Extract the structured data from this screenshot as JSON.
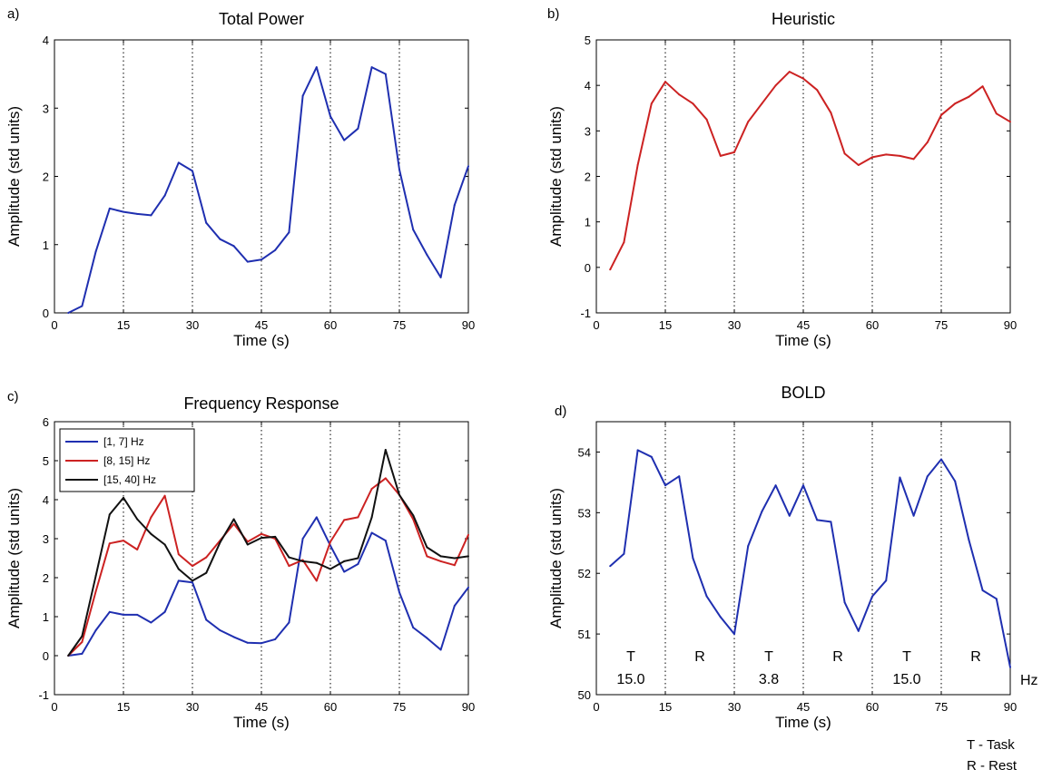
{
  "figure": {
    "note_task": "T - Task",
    "note_rest": "R - Rest"
  },
  "chart_data": [
    {
      "type": "line",
      "panel_label": "a)",
      "title": "Total Power",
      "xlabel": "Time (s)",
      "ylabel": "Amplitude (std units)",
      "xlim": [
        0,
        90
      ],
      "ylim": [
        0,
        4
      ],
      "xticks": [
        0,
        15,
        30,
        45,
        60,
        75,
        90
      ],
      "yticks": [
        0,
        1,
        2,
        3,
        4
      ],
      "vlines": [
        15,
        30,
        45,
        60,
        75
      ],
      "x": [
        3,
        6,
        9,
        12,
        15,
        18,
        21,
        24,
        27,
        30,
        33,
        36,
        39,
        42,
        45,
        48,
        51,
        54,
        57,
        60,
        63,
        66,
        69,
        72,
        75,
        78,
        81,
        84,
        87,
        90
      ],
      "series": [
        {
          "color": "#1f2fb0",
          "values": [
            0.0,
            0.1,
            0.9,
            1.53,
            1.48,
            1.45,
            1.43,
            1.72,
            2.2,
            2.08,
            1.32,
            1.08,
            0.98,
            0.75,
            0.78,
            0.92,
            1.18,
            3.18,
            3.6,
            2.88,
            2.53,
            2.7,
            3.6,
            3.5,
            2.1,
            1.22,
            0.85,
            0.52,
            1.58,
            2.15
          ]
        }
      ]
    },
    {
      "type": "line",
      "panel_label": "b)",
      "title": "Heuristic",
      "xlabel": "Time (s)",
      "ylabel": "Amplitude (std units)",
      "xlim": [
        0,
        90
      ],
      "ylim": [
        -1,
        5
      ],
      "xticks": [
        0,
        15,
        30,
        45,
        60,
        75,
        90
      ],
      "yticks": [
        -1,
        0,
        1,
        2,
        3,
        4,
        5
      ],
      "vlines": [
        15,
        30,
        45,
        60,
        75
      ],
      "x": [
        3,
        6,
        9,
        12,
        15,
        18,
        21,
        24,
        27,
        30,
        33,
        36,
        39,
        42,
        45,
        48,
        51,
        54,
        57,
        60,
        63,
        66,
        69,
        72,
        75,
        78,
        81,
        84,
        87,
        90
      ],
      "series": [
        {
          "color": "#cc2222",
          "values": [
            -0.05,
            0.55,
            2.25,
            3.6,
            4.08,
            3.8,
            3.6,
            3.25,
            2.45,
            2.53,
            3.2,
            3.6,
            4.0,
            4.3,
            4.15,
            3.9,
            3.4,
            2.5,
            2.25,
            2.42,
            2.48,
            2.45,
            2.38,
            2.75,
            3.35,
            3.6,
            3.75,
            3.98,
            3.38,
            3.2
          ]
        }
      ]
    },
    {
      "type": "line",
      "panel_label": "c)",
      "title": "Frequency Response",
      "xlabel": "Time (s)",
      "ylabel": "Amplitude (std units)",
      "xlim": [
        0,
        90
      ],
      "ylim": [
        -1,
        6
      ],
      "xticks": [
        0,
        15,
        30,
        45,
        60,
        75,
        90
      ],
      "yticks": [
        -1,
        0,
        1,
        2,
        3,
        4,
        5,
        6
      ],
      "vlines": [
        15,
        30,
        45,
        60,
        75
      ],
      "legend_position": "top-left",
      "x": [
        3,
        6,
        9,
        12,
        15,
        18,
        21,
        24,
        27,
        30,
        33,
        36,
        39,
        42,
        45,
        48,
        51,
        54,
        57,
        60,
        63,
        66,
        69,
        72,
        75,
        78,
        81,
        84,
        87,
        90
      ],
      "series": [
        {
          "name": "[1, 7] Hz",
          "color": "#1f2fb0",
          "values": [
            0.0,
            0.05,
            0.65,
            1.12,
            1.05,
            1.05,
            0.85,
            1.12,
            1.92,
            1.88,
            0.92,
            0.65,
            0.48,
            0.33,
            0.32,
            0.42,
            0.85,
            3.0,
            3.55,
            2.82,
            2.15,
            2.35,
            3.15,
            2.95,
            1.62,
            0.72,
            0.45,
            0.15,
            1.28,
            1.75
          ]
        },
        {
          "name": "[8, 15] Hz",
          "color": "#cc2222",
          "values": [
            0.0,
            0.35,
            1.65,
            2.88,
            2.95,
            2.72,
            3.55,
            4.1,
            2.6,
            2.3,
            2.52,
            2.95,
            3.38,
            2.92,
            3.12,
            3.0,
            2.3,
            2.45,
            1.92,
            2.92,
            3.48,
            3.55,
            4.28,
            4.55,
            4.12,
            3.5,
            2.55,
            2.42,
            2.32,
            3.1
          ]
        },
        {
          "name": "[15, 40] Hz",
          "color": "#111111",
          "values": [
            0.0,
            0.5,
            2.05,
            3.62,
            4.05,
            3.5,
            3.12,
            2.85,
            2.22,
            1.92,
            2.12,
            2.9,
            3.5,
            2.85,
            3.02,
            3.05,
            2.52,
            2.42,
            2.38,
            2.22,
            2.42,
            2.5,
            3.55,
            5.28,
            4.12,
            3.6,
            2.78,
            2.55,
            2.5,
            2.55
          ]
        }
      ]
    },
    {
      "type": "line",
      "panel_label": "d)",
      "title": "BOLD",
      "xlabel": "Time (s)",
      "ylabel": "Amplitude (std units)",
      "xlim": [
        0,
        90
      ],
      "ylim": [
        50,
        54.5
      ],
      "xticks": [
        0,
        15,
        30,
        45,
        60,
        75,
        90
      ],
      "yticks": [
        50,
        51,
        52,
        53,
        54
      ],
      "vlines": [
        15,
        30,
        45,
        60,
        75
      ],
      "x": [
        3,
        6,
        9,
        12,
        15,
        18,
        21,
        24,
        27,
        30,
        33,
        36,
        39,
        42,
        45,
        48,
        51,
        54,
        57,
        60,
        63,
        66,
        69,
        72,
        75,
        78,
        81,
        84,
        87,
        90
      ],
      "series": [
        {
          "color": "#1f2fb0",
          "values": [
            52.12,
            52.32,
            54.03,
            53.92,
            53.45,
            53.6,
            52.25,
            51.62,
            51.28,
            51.0,
            52.45,
            53.02,
            53.45,
            52.95,
            53.45,
            52.88,
            52.85,
            51.52,
            51.05,
            51.62,
            51.88,
            53.58,
            52.95,
            53.6,
            53.88,
            53.52,
            52.55,
            51.72,
            51.58,
            50.45
          ]
        }
      ],
      "annotations": [
        {
          "x": 7.5,
          "label": "T",
          "value": "15.0"
        },
        {
          "x": 22.5,
          "label": "R"
        },
        {
          "x": 37.5,
          "label": "T",
          "value": "3.8"
        },
        {
          "x": 52.5,
          "label": "R"
        },
        {
          "x": 67.5,
          "label": "T",
          "value": "15.0"
        },
        {
          "x": 82.5,
          "label": "R"
        }
      ],
      "annotation_unit": "Hz"
    }
  ]
}
